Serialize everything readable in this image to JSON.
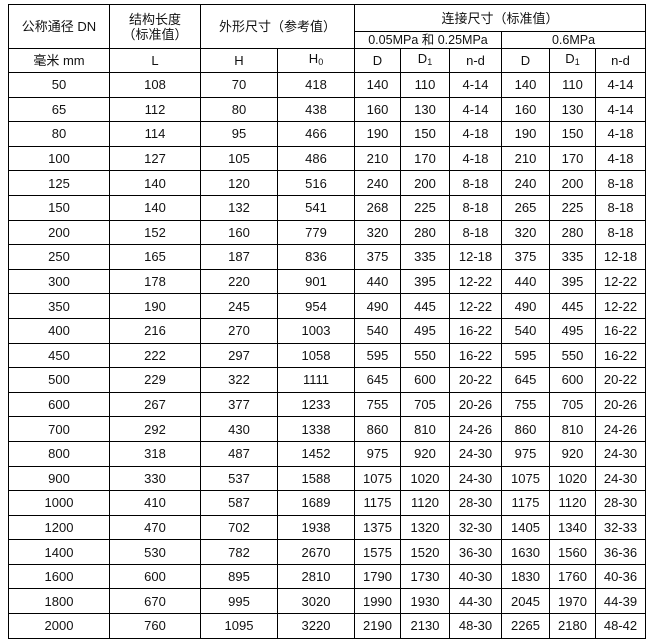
{
  "header": {
    "dn": "公称通径 DN",
    "length_l1": "结构长度",
    "length_l2": "（标准值）",
    "outer": "外形尺寸（参考值）",
    "conn": "连接尺寸（标准值）",
    "p_low": "0.05MPa 和 0.25MPa",
    "p_high": "0.6MPa",
    "unit": "毫米 mm",
    "L": "L",
    "H": "H",
    "H0": "H",
    "H0_sub": "0",
    "D": "D",
    "D1": "D",
    "D1_sub": "1",
    "nd": "n-d"
  },
  "rows": [
    [
      "50",
      "108",
      "70",
      "418",
      "140",
      "110",
      "4-14",
      "140",
      "110",
      "4-14"
    ],
    [
      "65",
      "112",
      "80",
      "438",
      "160",
      "130",
      "4-14",
      "160",
      "130",
      "4-14"
    ],
    [
      "80",
      "114",
      "95",
      "466",
      "190",
      "150",
      "4-18",
      "190",
      "150",
      "4-18"
    ],
    [
      "100",
      "127",
      "105",
      "486",
      "210",
      "170",
      "4-18",
      "210",
      "170",
      "4-18"
    ],
    [
      "125",
      "140",
      "120",
      "516",
      "240",
      "200",
      "8-18",
      "240",
      "200",
      "8-18"
    ],
    [
      "150",
      "140",
      "132",
      "541",
      "268",
      "225",
      "8-18",
      "265",
      "225",
      "8-18"
    ],
    [
      "200",
      "152",
      "160",
      "779",
      "320",
      "280",
      "8-18",
      "320",
      "280",
      "8-18"
    ],
    [
      "250",
      "165",
      "187",
      "836",
      "375",
      "335",
      "12-18",
      "375",
      "335",
      "12-18"
    ],
    [
      "300",
      "178",
      "220",
      "901",
      "440",
      "395",
      "12-22",
      "440",
      "395",
      "12-22"
    ],
    [
      "350",
      "190",
      "245",
      "954",
      "490",
      "445",
      "12-22",
      "490",
      "445",
      "12-22"
    ],
    [
      "400",
      "216",
      "270",
      "1003",
      "540",
      "495",
      "16-22",
      "540",
      "495",
      "16-22"
    ],
    [
      "450",
      "222",
      "297",
      "1058",
      "595",
      "550",
      "16-22",
      "595",
      "550",
      "16-22"
    ],
    [
      "500",
      "229",
      "322",
      "1111",
      "645",
      "600",
      "20-22",
      "645",
      "600",
      "20-22"
    ],
    [
      "600",
      "267",
      "377",
      "1233",
      "755",
      "705",
      "20-26",
      "755",
      "705",
      "20-26"
    ],
    [
      "700",
      "292",
      "430",
      "1338",
      "860",
      "810",
      "24-26",
      "860",
      "810",
      "24-26"
    ],
    [
      "800",
      "318",
      "487",
      "1452",
      "975",
      "920",
      "24-30",
      "975",
      "920",
      "24-30"
    ],
    [
      "900",
      "330",
      "537",
      "1588",
      "1075",
      "1020",
      "24-30",
      "1075",
      "1020",
      "24-30"
    ],
    [
      "1000",
      "410",
      "587",
      "1689",
      "1175",
      "1120",
      "28-30",
      "1175",
      "1120",
      "28-30"
    ],
    [
      "1200",
      "470",
      "702",
      "1938",
      "1375",
      "1320",
      "32-30",
      "1405",
      "1340",
      "32-33"
    ],
    [
      "1400",
      "530",
      "782",
      "2670",
      "1575",
      "1520",
      "36-30",
      "1630",
      "1560",
      "36-36"
    ],
    [
      "1600",
      "600",
      "895",
      "2810",
      "1790",
      "1730",
      "40-30",
      "1830",
      "1760",
      "40-36"
    ],
    [
      "1800",
      "670",
      "995",
      "3020",
      "1990",
      "1930",
      "44-30",
      "2045",
      "1970",
      "44-39"
    ],
    [
      "2000",
      "760",
      "1095",
      "3220",
      "2190",
      "2130",
      "48-30",
      "2265",
      "2180",
      "48-42"
    ]
  ]
}
